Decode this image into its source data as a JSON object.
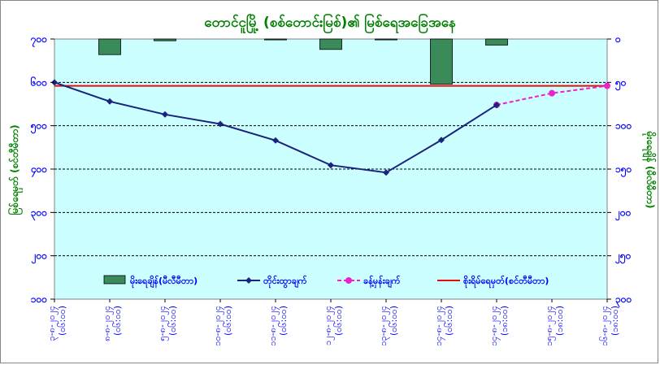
{
  "chart_data": {
    "type": "bar+line",
    "title": "တောင်ငူမြို့ (စစ်တောင်းမြစ်)၏ မြစ်ရေအခြေအနေ",
    "ylabel_left": "မြစ်ရေမှတ် (စင်တီမီတာ)",
    "ylabel_right": "မိုးရေချိန် (မီလီမီတာ)",
    "y_left": {
      "min": 100,
      "max": 700,
      "ticks": [
        100,
        200,
        300,
        400,
        500,
        600,
        700
      ],
      "tick_labels": [
        "၁၀၀",
        "၂၀၀",
        "၃၀၀",
        "၄၀၀",
        "၅၀၀",
        "၆၀၀",
        "၇၀၀"
      ]
    },
    "y_right": {
      "min": 0,
      "max": 300,
      "reversed": true,
      "ticks": [
        0,
        50,
        100,
        150,
        200,
        250,
        300
      ],
      "tick_labels": [
        "၀",
        "၅၀",
        "၁၀၀",
        "၁၅၀",
        "၂၀၀",
        "၂၅၀",
        "၃၀၀"
      ]
    },
    "categories": [
      "၃-၈-၂၀၂၄ (၀၆:၀၀)",
      "၈-၈-၂၀၂၄ (၀၆:၀၀)",
      "၅-၈-၂၀၂၄ (၀၆:၀၀)",
      "၁၀-၈-၂၀၂၄ (၀၆:၀၀)",
      "၁၁-၈-၂၀၂၄ (၀၆:၀၀)",
      "၁၂-၈-၂၀၂၄ (၀၆:၀၀)",
      "၁၃-၈-၂၀၂၄ (၀၆:၀၀)",
      "၁၄-၈-၂၀၂၄ (၀၆:၀၀)",
      "၁၄-၈-၂၀၂၄ (၁၈:၀၀)",
      "၁၅-၈-၂၀၂၄ (၁၈:၀၀)",
      "၁၆-၈-၂၀၂၄ (၁၈:၀၀)"
    ],
    "series": [
      {
        "name": "မိုးရေချိန်(မီလီမီတာ)",
        "kind": "bar",
        "axis": "right",
        "color": "#3a8a5a",
        "values": [
          null,
          18,
          2,
          null,
          1,
          12,
          1,
          52,
          7,
          null,
          null
        ]
      },
      {
        "name": "တိုင်းထွာချက်",
        "kind": "line",
        "axis": "left",
        "color": "#1a237e",
        "values": [
          600,
          556,
          526,
          504,
          466,
          409,
          392,
          467,
          548,
          null,
          null
        ]
      },
      {
        "name": "ခန့်မှန်းချက်",
        "kind": "line-dashed",
        "axis": "left",
        "color": "#ee22cc",
        "values": [
          null,
          null,
          null,
          null,
          null,
          null,
          null,
          null,
          548,
          575,
          592
        ]
      },
      {
        "name": "စိုးရိမ်ရေမှတ်(စင်တီမီတာ)",
        "kind": "hline",
        "axis": "left",
        "color": "#e01010",
        "value": 592
      }
    ],
    "grid": true,
    "legend_position": "bottom-inside",
    "plot_background": "#ccffff",
    "axis_label_color": "#0000ff",
    "title_color": "#008000"
  }
}
